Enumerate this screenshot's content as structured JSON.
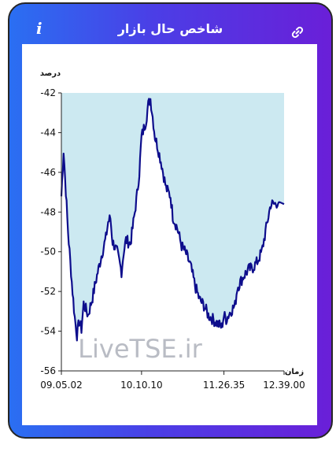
{
  "header": {
    "title": "شاخص حال بازار",
    "info_icon": "info-icon",
    "link_icon": "link-icon"
  },
  "colors": {
    "gradient_start": "#2a6ff2",
    "gradient_end": "#6a1fd8",
    "area_fill": "#cce9f1",
    "line": "#0d0d8c"
  },
  "chart_data": {
    "type": "area",
    "ylabel": "درصد",
    "xlabel": "زمان",
    "ylim": [
      -56,
      -42
    ],
    "y_ticks": [
      "-42",
      "-44",
      "-46",
      "-48",
      "-50",
      "-52",
      "-54",
      "-56"
    ],
    "x_tick_labels": [
      "09.05.02",
      "10.10.10",
      "11.26.35",
      "12.39.00"
    ],
    "watermark": "LiveTSE.ir",
    "grid": false,
    "x": [
      0,
      0.01,
      0.03,
      0.05,
      0.06,
      0.07,
      0.08,
      0.09,
      0.1,
      0.12,
      0.14,
      0.16,
      0.18,
      0.2,
      0.21,
      0.22,
      0.23,
      0.25,
      0.27,
      0.28,
      0.29,
      0.31,
      0.33,
      0.34,
      0.35,
      0.36,
      0.38,
      0.39,
      0.4,
      0.41,
      0.42,
      0.43,
      0.45,
      0.47,
      0.49,
      0.5,
      0.52,
      0.54,
      0.56,
      0.58,
      0.6,
      0.62,
      0.64,
      0.66,
      0.68,
      0.7,
      0.72,
      0.73,
      0.74,
      0.76,
      0.78,
      0.79,
      0.8,
      0.82,
      0.84,
      0.86,
      0.88,
      0.9,
      0.92,
      0.94,
      0.96,
      0.97,
      0.98,
      1.0
    ],
    "values": [
      -47.2,
      -44.9,
      -49.0,
      -52.0,
      -53.3,
      -54.2,
      -53.5,
      -53.9,
      -52.6,
      -53.2,
      -52.3,
      -51.2,
      -50.2,
      -49.3,
      -48.5,
      -48.3,
      -49.5,
      -50.0,
      -51.0,
      -50.0,
      -49.4,
      -49.6,
      -48.0,
      -47.1,
      -46.0,
      -44.2,
      -43.4,
      -42.6,
      -42.3,
      -43.2,
      -44.2,
      -44.6,
      -45.6,
      -46.8,
      -47.2,
      -48.2,
      -48.8,
      -49.7,
      -50.1,
      -50.7,
      -51.7,
      -52.4,
      -52.7,
      -53.2,
      -53.4,
      -53.6,
      -53.8,
      -53.2,
      -53.4,
      -53.0,
      -52.7,
      -51.8,
      -51.6,
      -51.2,
      -50.9,
      -50.8,
      -50.5,
      -50.0,
      -48.8,
      -47.6,
      -47.6,
      -47.5,
      -47.5,
      -47.6
    ]
  }
}
